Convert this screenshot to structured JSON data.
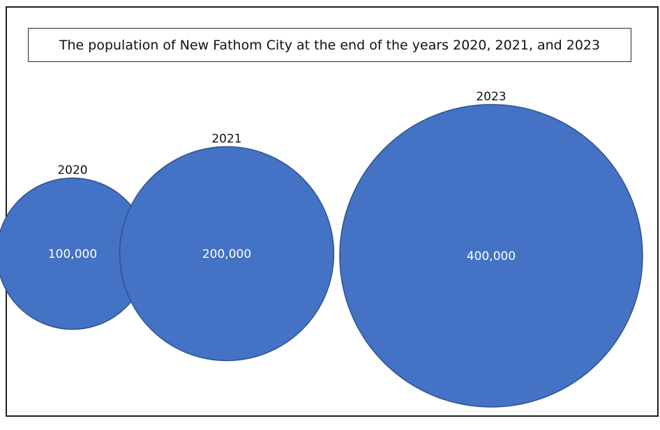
{
  "chart_data": {
    "type": "bubble",
    "title": "The population of New Fathom City at the end of the years 2020, 2021, and 2023",
    "categories": [
      "2020",
      "2021",
      "2023"
    ],
    "values": [
      100000,
      200000,
      400000
    ],
    "value_labels": [
      "100,000",
      "200,000",
      "400,000"
    ],
    "colors": {
      "fill": "#4472c4",
      "stroke": "#2f528f",
      "value_text": "#ffffff"
    }
  }
}
